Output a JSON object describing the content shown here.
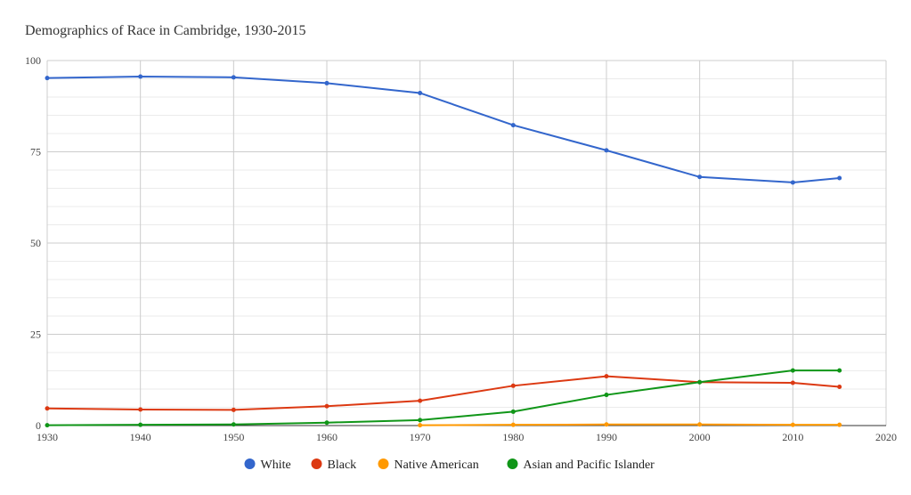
{
  "chart_data": {
    "type": "line",
    "title": "Demographics of Race in Cambridge, 1930-2015",
    "xlabel": "",
    "ylabel": "",
    "xlim": [
      1930,
      2020
    ],
    "ylim": [
      0,
      100
    ],
    "x_ticks": [
      1930,
      1940,
      1950,
      1960,
      1970,
      1980,
      1990,
      2000,
      2010,
      2020
    ],
    "y_ticks": [
      0,
      25,
      50,
      75,
      100
    ],
    "grid": true,
    "legend_position": "bottom",
    "series": [
      {
        "name": "White",
        "color": "#3366cc",
        "x": [
          1930,
          1940,
          1950,
          1960,
          1970,
          1980,
          1990,
          2000,
          2010,
          2015
        ],
        "values": [
          95.2,
          95.6,
          95.4,
          93.8,
          91.1,
          82.3,
          75.4,
          68.1,
          66.6,
          67.8
        ]
      },
      {
        "name": "Black",
        "color": "#dc3912",
        "x": [
          1930,
          1940,
          1950,
          1960,
          1970,
          1980,
          1990,
          2000,
          2010,
          2015
        ],
        "values": [
          4.7,
          4.4,
          4.3,
          5.3,
          6.8,
          10.9,
          13.5,
          11.9,
          11.7,
          10.6
        ]
      },
      {
        "name": "Native American",
        "color": "#ff9900",
        "x": [
          1970,
          1980,
          1990,
          2000,
          2010,
          2015
        ],
        "values": [
          0.1,
          0.2,
          0.3,
          0.3,
          0.2,
          0.2
        ]
      },
      {
        "name": "Asian and Pacific Islander",
        "color": "#109618",
        "x": [
          1930,
          1940,
          1950,
          1960,
          1970,
          1980,
          1990,
          2000,
          2010,
          2015
        ],
        "values": [
          0.1,
          0.2,
          0.3,
          0.8,
          1.5,
          3.8,
          8.4,
          11.9,
          15.1,
          15.1
        ]
      }
    ]
  }
}
